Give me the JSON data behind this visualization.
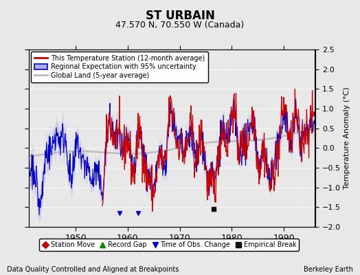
{
  "title": "ST URBAIN",
  "subtitle": "47.570 N, 70.550 W (Canada)",
  "ylabel": "Temperature Anomaly (°C)",
  "xlabel_left": "Data Quality Controlled and Aligned at Breakpoints",
  "xlabel_right": "Berkeley Earth",
  "xlim": [
    1941,
    1996
  ],
  "ylim": [
    -2.0,
    2.5
  ],
  "yticks": [
    -2,
    -1.5,
    -1,
    -0.5,
    0,
    0.5,
    1,
    1.5,
    2,
    2.5
  ],
  "xticks": [
    1950,
    1960,
    1970,
    1980,
    1990
  ],
  "background_color": "#e8e8e8",
  "plot_background": "#e8e8e8",
  "grid_color": "white",
  "station_line_color": "#cc0000",
  "regional_line_color": "#0000cc",
  "regional_fill_color": "#aaaaee",
  "global_land_color": "#bbbbbb",
  "empirical_break_year": 1976.5,
  "empirical_break_value": -1.55,
  "time_of_obs_years": [
    1958.5,
    1962.0
  ],
  "time_of_obs_values": [
    -1.65,
    -1.65
  ],
  "legend_entries": [
    "This Temperature Station (12-month average)",
    "Regional Expectation with 95% uncertainty",
    "Global Land (5-year average)"
  ],
  "bottom_legend": [
    {
      "label": "Station Move",
      "color": "#cc0000",
      "marker": "D"
    },
    {
      "label": "Record Gap",
      "color": "#008800",
      "marker": "^"
    },
    {
      "label": "Time of Obs. Change",
      "color": "#0000cc",
      "marker": "v"
    },
    {
      "label": "Empirical Break",
      "color": "#111111",
      "marker": "s"
    }
  ]
}
